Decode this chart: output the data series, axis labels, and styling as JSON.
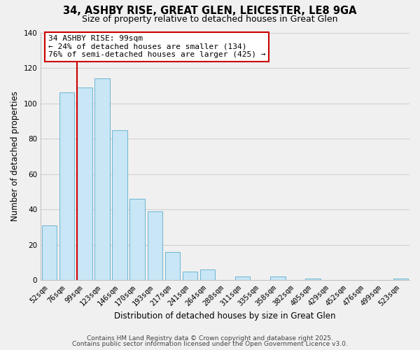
{
  "title": "34, ASHBY RISE, GREAT GLEN, LEICESTER, LE8 9GA",
  "subtitle": "Size of property relative to detached houses in Great Glen",
  "xlabel": "Distribution of detached houses by size in Great Glen",
  "ylabel": "Number of detached properties",
  "bar_labels": [
    "52sqm",
    "76sqm",
    "99sqm",
    "123sqm",
    "146sqm",
    "170sqm",
    "193sqm",
    "217sqm",
    "241sqm",
    "264sqm",
    "288sqm",
    "311sqm",
    "335sqm",
    "358sqm",
    "382sqm",
    "405sqm",
    "429sqm",
    "452sqm",
    "476sqm",
    "499sqm",
    "523sqm"
  ],
  "bar_values": [
    31,
    106,
    109,
    114,
    85,
    46,
    39,
    16,
    5,
    6,
    0,
    2,
    0,
    2,
    0,
    1,
    0,
    0,
    0,
    0,
    1
  ],
  "bar_color": "#c8e6f5",
  "bar_edge_color": "#5aacce",
  "highlight_line_color": "#cc0000",
  "ylim": [
    0,
    140
  ],
  "yticks": [
    0,
    20,
    40,
    60,
    80,
    100,
    120,
    140
  ],
  "annotation_title": "34 ASHBY RISE: 99sqm",
  "annotation_line1": "← 24% of detached houses are smaller (134)",
  "annotation_line2": "76% of semi-detached houses are larger (425) →",
  "annotation_box_color": "#ffffff",
  "annotation_box_edge": "#cc0000",
  "footer1": "Contains HM Land Registry data © Crown copyright and database right 2025.",
  "footer2": "Contains public sector information licensed under the Open Government Licence v3.0.",
  "background_color": "#f0f0f0",
  "grid_color": "#d0d0d0",
  "title_fontsize": 10.5,
  "subtitle_fontsize": 9,
  "axis_label_fontsize": 8.5,
  "tick_fontsize": 7.5,
  "annotation_fontsize": 8,
  "footer_fontsize": 6.5
}
